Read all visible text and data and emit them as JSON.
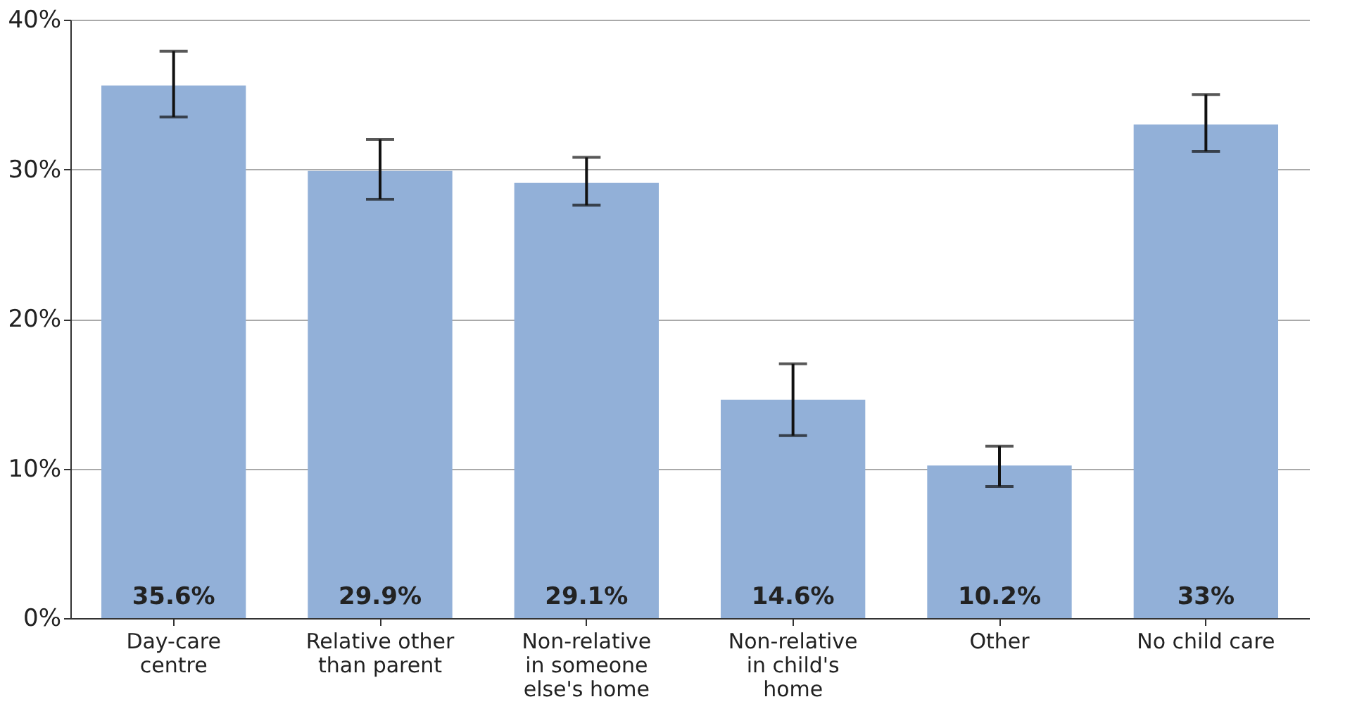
{
  "chart_data": {
    "type": "bar",
    "categories": [
      "Day-care centre",
      "Relative other than parent",
      "Non-relative in someone else's home",
      "Non-relative in child's home",
      "Other",
      "No child care"
    ],
    "values": [
      35.6,
      29.9,
      29.1,
      14.6,
      10.2,
      33
    ],
    "errors": [
      [
        33.5,
        37.9
      ],
      [
        28.0,
        32.0
      ],
      [
        27.6,
        30.8
      ],
      [
        12.2,
        17.0
      ],
      [
        8.8,
        11.5
      ],
      [
        31.2,
        35.0
      ]
    ],
    "color": "#92b0d8",
    "value_labels": [
      "35.6%",
      "29.9%",
      "29.1%",
      "14.6%",
      "10.2%",
      "33%"
    ],
    "ylim": [
      0,
      40
    ],
    "yticks": [
      {
        "value": 0,
        "label": "0%"
      },
      {
        "value": 10,
        "label": "10%"
      },
      {
        "value": 20,
        "label": "20%"
      },
      {
        "value": 30,
        "label": "30%"
      },
      {
        "value": 40,
        "label": "40%"
      }
    ],
    "grid": "y"
  }
}
